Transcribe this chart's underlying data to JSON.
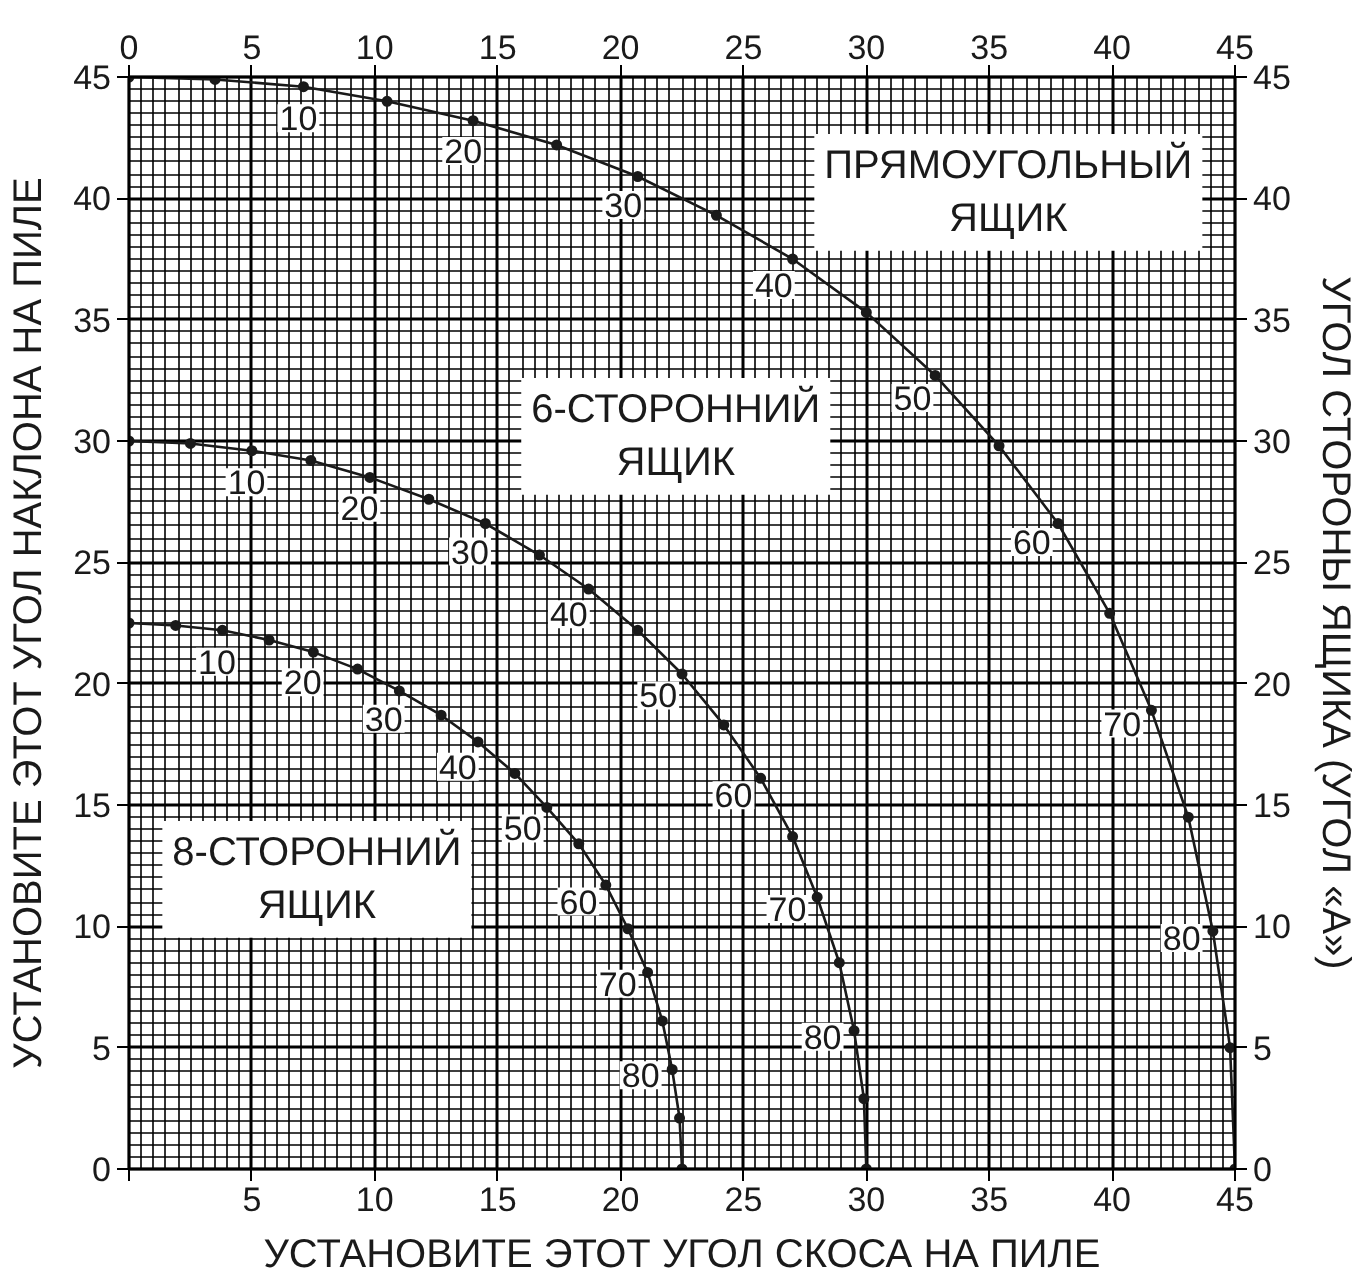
{
  "chart_data": {
    "type": "line",
    "xlabel": "УСТАНОВИТЕ ЭТОТ УГОЛ СКОСА НА ПИЛЕ",
    "ylabel": "УСТАНОВИТЕ ЭТОТ УГОЛ НАКЛОНА НА ПИЛЕ",
    "y2label": "УГОЛ СТОРОНЫ ЯЩИКА (УГОЛ «А»)",
    "xlim": [
      0,
      45
    ],
    "ylim": [
      0,
      45
    ],
    "x2lim": [
      0,
      45
    ],
    "y2lim": [
      0,
      45
    ],
    "xticks": [
      {
        "value": 0,
        "label": null
      },
      5,
      10,
      15,
      20,
      25,
      30,
      35,
      40,
      45
    ],
    "x2ticks": [
      0,
      5,
      10,
      15,
      20,
      25,
      30,
      35,
      40,
      45
    ],
    "yticks": [
      0,
      5,
      10,
      15,
      20,
      25,
      30,
      35,
      40,
      45
    ],
    "y2ticks": [
      0,
      5,
      10,
      15,
      20,
      25,
      30,
      35,
      40,
      45
    ],
    "grid": true,
    "marker": "circle",
    "line_style": "solid",
    "series": [
      {
        "name": "ПРЯМОУГОЛЬНЫЙ\nЯЩИК",
        "color": "#1a1a1a",
        "x": [
          0,
          3.5,
          7.1,
          10.5,
          14.0,
          17.4,
          20.7,
          23.9,
          27.0,
          30.0,
          32.8,
          35.4,
          37.8,
          39.9,
          41.6,
          43.1,
          44.1,
          44.8,
          45
        ],
        "values": [
          45,
          44.9,
          44.6,
          44.0,
          43.2,
          42.2,
          40.9,
          39.3,
          37.5,
          35.3,
          32.7,
          29.8,
          26.6,
          22.9,
          18.9,
          14.5,
          9.8,
          5.0,
          0
        ]
      },
      {
        "name": "6-СТОРОННИЙ\nЯЩИК",
        "color": "#1a1a1a",
        "x": [
          0,
          2.5,
          5.0,
          7.4,
          9.8,
          12.2,
          14.5,
          16.7,
          18.7,
          20.7,
          22.5,
          24.2,
          25.7,
          27.0,
          28.0,
          28.9,
          29.5,
          29.9,
          30
        ],
        "values": [
          30,
          29.9,
          29.6,
          29.2,
          28.5,
          27.6,
          26.6,
          25.3,
          23.9,
          22.2,
          20.4,
          18.3,
          16.1,
          13.7,
          11.2,
          8.5,
          5.7,
          2.9,
          0
        ]
      },
      {
        "name": "8-СТОРОННИЙ\nЯЩИК",
        "color": "#1a1a1a",
        "x": [
          0,
          1.9,
          3.8,
          5.7,
          7.5,
          9.3,
          11.0,
          12.7,
          14.2,
          15.7,
          17.0,
          18.3,
          19.4,
          20.3,
          21.1,
          21.7,
          22.1,
          22.4,
          22.5
        ],
        "values": [
          22.5,
          22.4,
          22.2,
          21.8,
          21.3,
          20.6,
          19.7,
          18.7,
          17.6,
          16.3,
          14.9,
          13.4,
          11.7,
          9.9,
          8.1,
          6.1,
          4.1,
          2.1,
          0
        ]
      }
    ],
    "annotations": [
      {
        "text": "10",
        "x": 7.1,
        "y": 44.6
      },
      {
        "text": "20",
        "x": 14.0,
        "y": 43.2
      },
      {
        "text": "30",
        "x": 20.7,
        "y": 40.9
      },
      {
        "text": "40",
        "x": 27.0,
        "y": 37.5
      },
      {
        "text": "50",
        "x": 32.8,
        "y": 32.7
      },
      {
        "text": "60",
        "x": 37.8,
        "y": 26.6
      },
      {
        "text": "70",
        "x": 41.6,
        "y": 18.9
      },
      {
        "text": "80",
        "x": 44.1,
        "y": 9.8
      },
      {
        "text": "10",
        "x": 5.0,
        "y": 29.6
      },
      {
        "text": "20",
        "x": 9.8,
        "y": 28.5
      },
      {
        "text": "30",
        "x": 14.5,
        "y": 26.6
      },
      {
        "text": "40",
        "x": 18.7,
        "y": 23.9
      },
      {
        "text": "50",
        "x": 22.5,
        "y": 20.4
      },
      {
        "text": "60",
        "x": 25.7,
        "y": 16.1
      },
      {
        "text": "70",
        "x": 28.0,
        "y": 11.2
      },
      {
        "text": "80",
        "x": 29.5,
        "y": 5.7
      },
      {
        "text": "10",
        "x": 3.8,
        "y": 22.2
      },
      {
        "text": "20",
        "x": 7.5,
        "y": 21.3
      },
      {
        "text": "30",
        "x": 11.0,
        "y": 19.7
      },
      {
        "text": "40",
        "x": 14.2,
        "y": 17.6
      },
      {
        "text": "50",
        "x": 17.0,
        "y": 14.9
      },
      {
        "text": "60",
        "x": 19.4,
        "y": 11.7
      },
      {
        "text": "70",
        "x": 21.1,
        "y": 8.1
      },
      {
        "text": "80",
        "x": 22.1,
        "y": 4.1
      }
    ]
  }
}
